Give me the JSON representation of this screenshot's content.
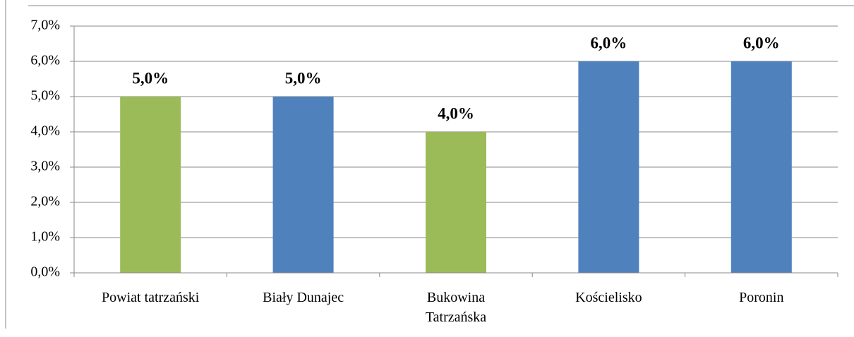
{
  "chart_data": {
    "type": "bar",
    "categories": [
      "Powiat tatrzański",
      "Biały Dunajec",
      "Bukowina Tatrzańska",
      "Kościelisko",
      "Poronin"
    ],
    "values": [
      5.0,
      5.0,
      4.0,
      6.0,
      6.0
    ],
    "value_labels": [
      "5,0%",
      "5,0%",
      "4,0%",
      "6,0%",
      "6,0%"
    ],
    "colors": [
      "#9bbb59",
      "#4f81bd",
      "#9bbb59",
      "#4f81bd",
      "#4f81bd"
    ],
    "ylim": [
      0,
      7
    ],
    "yticks": [
      {
        "value": 0,
        "label": "0,0%"
      },
      {
        "value": 1,
        "label": "1,0%"
      },
      {
        "value": 2,
        "label": "2,0%"
      },
      {
        "value": 3,
        "label": "3,0%"
      },
      {
        "value": 4,
        "label": "4,0%"
      },
      {
        "value": 5,
        "label": "5,0%"
      },
      {
        "value": 6,
        "label": "6,0%"
      },
      {
        "value": 7,
        "label": "7,0%"
      }
    ],
    "grid": true
  }
}
